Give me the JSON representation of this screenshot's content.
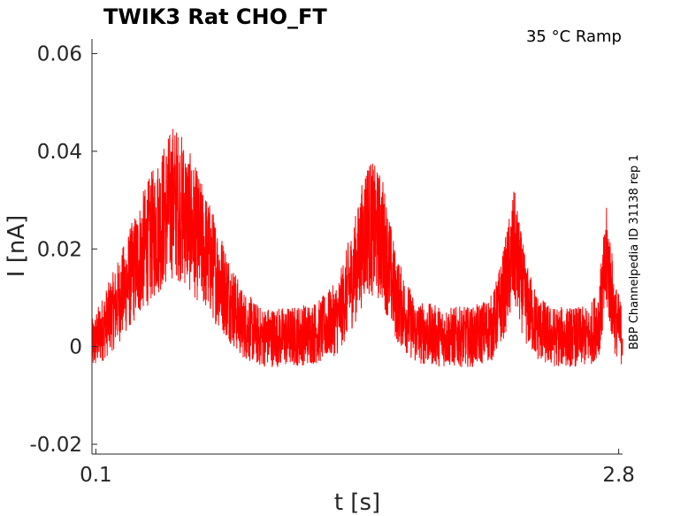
{
  "chart_data": {
    "type": "line",
    "title": "TWIK3  Rat  CHO_FT",
    "condition_label": "35 °C  Ramp",
    "side_label": "BBP Channelpedia ID 31138 rep 1",
    "xlabel": "t [s]",
    "ylabel": "I [nA]",
    "xlim": [
      0.08,
      2.82
    ],
    "ylim": [
      -0.022,
      0.063
    ],
    "xticks": [
      0.1,
      2.8
    ],
    "xtick_labels": [
      "0.1",
      "2.8"
    ],
    "yticks": [
      -0.02,
      0,
      0.02,
      0.04,
      0.06
    ],
    "ytick_labels": [
      "-0.02",
      "0",
      "0.02",
      "0.04",
      "0.06"
    ],
    "grid": false,
    "series": [
      {
        "color": "#ff0000",
        "x": [
          0.08,
          0.2,
          0.35,
          0.5,
          0.55,
          0.7,
          0.85,
          0.95,
          1.1,
          1.25,
          1.35,
          1.45,
          1.5,
          1.58,
          1.65,
          1.75,
          1.9,
          2.05,
          2.15,
          2.2,
          2.26,
          2.32,
          2.38,
          2.45,
          2.55,
          2.65,
          2.7,
          2.74,
          2.78,
          2.82
        ],
        "y": [
          0.0,
          0.008,
          0.02,
          0.03,
          0.028,
          0.017,
          0.005,
          0.002,
          0.002,
          0.003,
          0.006,
          0.017,
          0.025,
          0.022,
          0.01,
          0.003,
          0.002,
          0.002,
          0.004,
          0.01,
          0.02,
          0.009,
          0.004,
          0.002,
          0.002,
          0.002,
          0.006,
          0.018,
          0.006,
          0.002
        ]
      }
    ]
  }
}
